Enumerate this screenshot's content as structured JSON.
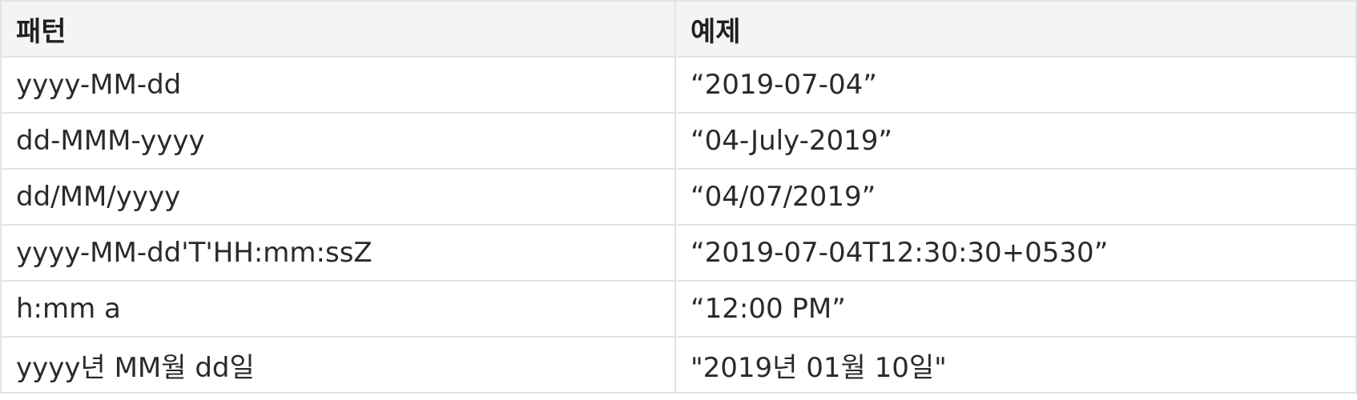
{
  "table": {
    "headers": [
      "패턴",
      "예제"
    ],
    "rows": [
      {
        "pattern": "yyyy-MM-dd",
        "example": "“2019-07-04”"
      },
      {
        "pattern": "dd-MMM-yyyy",
        "example": "“04-July-2019”"
      },
      {
        "pattern": "dd/MM/yyyy",
        "example": "“04/07/2019”"
      },
      {
        "pattern": "yyyy-MM-dd'T'HH:mm:ssZ",
        "example": "“2019-07-04T12:30:30+0530”"
      },
      {
        "pattern": "h:mm a",
        "example": "“12:00 PM”"
      },
      {
        "pattern": "yyyy년 MM월 dd일",
        "example": "\"2019년 01월 10일\""
      }
    ]
  }
}
